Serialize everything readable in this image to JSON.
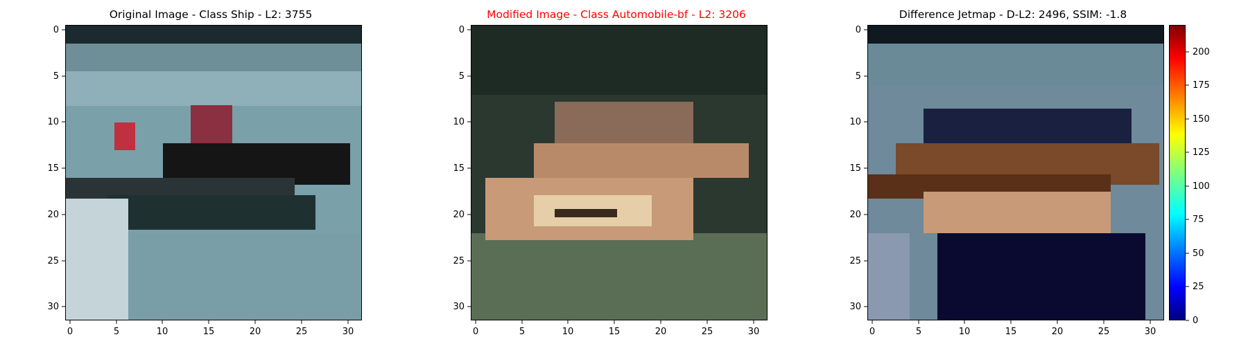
{
  "panels": [
    {
      "title": "Original Image - Class Ship - L2: 3755",
      "title_color": "#000000"
    },
    {
      "title": "Modified Image - Class Automobile-bf - L2: 3206",
      "title_color": "#ff0000"
    },
    {
      "title": "Difference Jetmap - D-L2: 2496, SSIM: -1.8",
      "title_color": "#000000"
    }
  ],
  "axis_ticks": {
    "x": [
      "0",
      "5",
      "10",
      "15",
      "20",
      "25",
      "30"
    ],
    "y": [
      "0",
      "5",
      "10",
      "15",
      "20",
      "25",
      "30"
    ]
  },
  "colorbar": {
    "ticks": [
      "0",
      "25",
      "50",
      "75",
      "100",
      "125",
      "150",
      "175",
      "200"
    ],
    "min": 0,
    "max": 220,
    "colormap": "jet"
  },
  "colors": {
    "water": "#7aa0aa",
    "boat_hull": "#111111",
    "boat_red": "#c03040",
    "modified_bg": "#2a3830",
    "modified_boat": "#d8b08a",
    "diff_dark": "#0a0a30"
  }
}
